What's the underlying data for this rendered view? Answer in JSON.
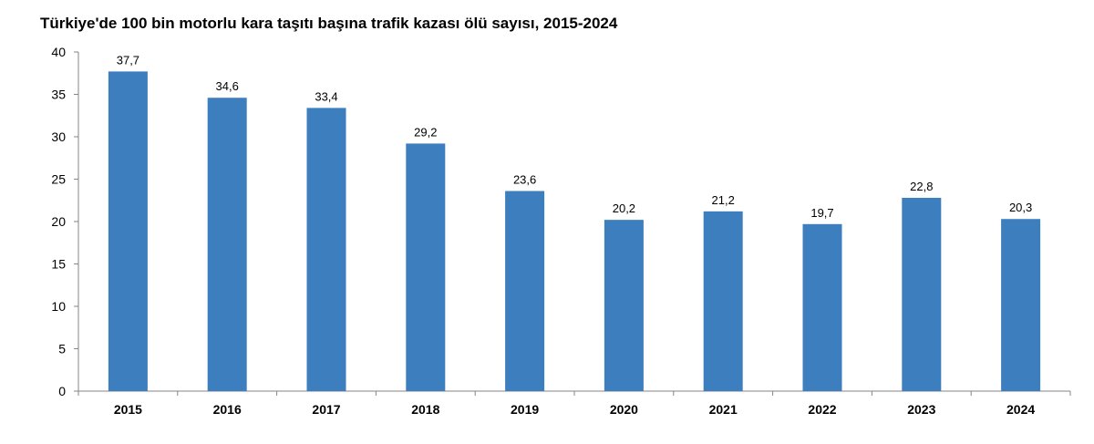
{
  "chart_data": {
    "type": "bar",
    "title": "Türkiye'de 100 bin motorlu kara taşıtı başına trafik kazası ölü sayısı, 2015-2024",
    "xlabel": "",
    "ylabel": "",
    "categories": [
      "2015",
      "2016",
      "2017",
      "2018",
      "2019",
      "2020",
      "2021",
      "2022",
      "2023",
      "2024"
    ],
    "values": [
      37.7,
      34.6,
      33.4,
      29.2,
      23.6,
      20.2,
      21.2,
      19.7,
      22.8,
      20.3
    ],
    "value_labels": [
      "37,7",
      "34,6",
      "33,4",
      "29,2",
      "23,6",
      "20,2",
      "21,2",
      "19,7",
      "22,8",
      "20,3"
    ],
    "ylim": [
      0,
      40
    ],
    "yticks": [
      0,
      5,
      10,
      15,
      20,
      25,
      30,
      35,
      40
    ],
    "grid": false,
    "legend": "none",
    "bar_color": "#3d7ebf"
  }
}
